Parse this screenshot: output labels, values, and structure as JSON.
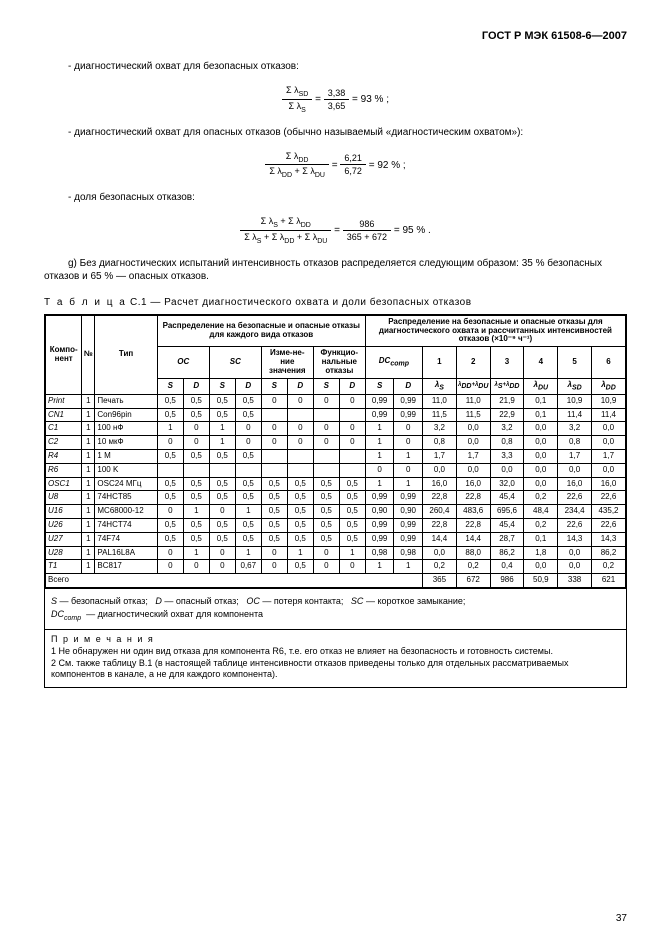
{
  "header": "ГОСТ Р МЭК 61508-6—2007",
  "para1": "- диагностический охват для безопасных отказов:",
  "f1": {
    "num1": "Σ λ_SD",
    "den1": "Σ λ_S",
    "num2": "3,38",
    "den2": "3,65",
    "rhs": "= 93 % ;"
  },
  "para2": "- диагностический охват для опасных отказов (обычно называемый «диагностическим охватом»):",
  "f2": {
    "num1": "Σ λ_DD",
    "den1": "Σ λ_DD + Σ λ_DU",
    "num2": "6,21",
    "den2": "6,72",
    "rhs": "= 92  % ;"
  },
  "para3": "- доля безопасных отказов:",
  "f3": {
    "num1": "Σ λ_S + Σ λ_DD",
    "den1": "Σ λ_S + Σ λ_DD  + Σ λ_DU",
    "num2": "986",
    "den2": "365 + 672",
    "rhs": "= 95 % ."
  },
  "para_g": "g) Без диагностических испытаний интенсивность отказов распределяется следующим образом: 35 % безопасных отказов и 65 % — опасных отказов.",
  "caption_prefix": "Т а б л и ц а",
  "caption_rest": "  С.1 — Расчет диагностического охвата и доли безопасных отказов",
  "h": {
    "comp": "Компо-\nнент",
    "n": "№",
    "type": "Тип",
    "left": "Распределение на безопасные и опасные отказы для каждого вида отказов",
    "right": "Распределение на безопасные и опасные отказы для диагностического охвата и рассчитанных интенсивностей отказов (×10⁻⁹ ч⁻¹)",
    "oc": "OC",
    "sc": "SC",
    "izm": "Изме-не-\nние\nзначения",
    "func": "Функцио-\nнальные\nотказы",
    "dc": "DC_comp",
    "S": "S",
    "D": "D",
    "c1": "1",
    "c2": "2",
    "c3": "3",
    "c4": "4",
    "c5": "5",
    "c6": "6",
    "l1": "λ_S",
    "l2": "λ_DD+λ_DU",
    "l3": "λ_S+λ_DD",
    "l4": "λ_DU",
    "l5": "λ_SD",
    "l6": "λ_DD"
  },
  "rows": [
    {
      "c": "Print",
      "n": "1",
      "t": "Печать",
      "v": [
        "0,5",
        "0,5",
        "0,5",
        "0,5",
        "0",
        "0",
        "0",
        "0",
        "0,99",
        "0,99",
        "11,0",
        "11,0",
        "21,9",
        "0,1",
        "10,9",
        "10,9"
      ]
    },
    {
      "c": "CN1",
      "n": "1",
      "t": "Con96pin",
      "v": [
        "0,5",
        "0,5",
        "0,5",
        "0,5",
        "",
        "",
        "",
        "",
        "0,99",
        "0,99",
        "11,5",
        "11,5",
        "22,9",
        "0,1",
        "11,4",
        "11,4"
      ]
    },
    {
      "c": "C1",
      "n": "1",
      "t": "100 нФ",
      "v": [
        "1",
        "0",
        "1",
        "0",
        "0",
        "0",
        "0",
        "0",
        "1",
        "0",
        "3,2",
        "0,0",
        "3,2",
        "0,0",
        "3,2",
        "0,0"
      ]
    },
    {
      "c": "C2",
      "n": "1",
      "t": "10 мкФ",
      "v": [
        "0",
        "0",
        "1",
        "0",
        "0",
        "0",
        "0",
        "0",
        "1",
        "0",
        "0,8",
        "0,0",
        "0,8",
        "0,0",
        "0,8",
        "0,0"
      ]
    },
    {
      "c": "R4",
      "n": "1",
      "t": "1 M",
      "v": [
        "0,5",
        "0,5",
        "0,5",
        "0,5",
        "",
        "",
        "",
        "",
        "1",
        "1",
        "1,7",
        "1,7",
        "3,3",
        "0,0",
        "1,7",
        "1,7"
      ]
    },
    {
      "c": "R6",
      "n": "1",
      "t": "100 K",
      "v": [
        "",
        "",
        "",
        "",
        "",
        "",
        "",
        "",
        "0",
        "0",
        "0,0",
        "0,0",
        "0,0",
        "0,0",
        "0,0",
        "0,0"
      ]
    },
    {
      "c": "OSC1",
      "n": "1",
      "t": "OSC24 МГц",
      "v": [
        "0,5",
        "0,5",
        "0,5",
        "0,5",
        "0,5",
        "0,5",
        "0,5",
        "0,5",
        "1",
        "1",
        "16,0",
        "16,0",
        "32,0",
        "0,0",
        "16,0",
        "16,0"
      ]
    },
    {
      "c": "U8",
      "n": "1",
      "t": "74HCT85",
      "v": [
        "0,5",
        "0,5",
        "0,5",
        "0,5",
        "0,5",
        "0,5",
        "0,5",
        "0,5",
        "0,99",
        "0,99",
        "22,8",
        "22,8",
        "45,4",
        "0,2",
        "22,6",
        "22,6"
      ]
    },
    {
      "c": "U16",
      "n": "1",
      "t": "MC68000-12",
      "v": [
        "0",
        "1",
        "0",
        "1",
        "0,5",
        "0,5",
        "0,5",
        "0,5",
        "0,90",
        "0,90",
        "260,4",
        "483,6",
        "695,6",
        "48,4",
        "234,4",
        "435,2"
      ]
    },
    {
      "c": "U26",
      "n": "1",
      "t": "74HCT74",
      "v": [
        "0,5",
        "0,5",
        "0,5",
        "0,5",
        "0,5",
        "0,5",
        "0,5",
        "0,5",
        "0,99",
        "0,99",
        "22,8",
        "22,8",
        "45,4",
        "0,2",
        "22,6",
        "22,6"
      ]
    },
    {
      "c": "U27",
      "n": "1",
      "t": "74F74",
      "v": [
        "0,5",
        "0,5",
        "0,5",
        "0,5",
        "0,5",
        "0,5",
        "0,5",
        "0,5",
        "0,99",
        "0,99",
        "14,4",
        "14,4",
        "28,7",
        "0,1",
        "14,3",
        "14,3"
      ]
    },
    {
      "c": "U28",
      "n": "1",
      "t": "PAL16L8A",
      "v": [
        "0",
        "1",
        "0",
        "1",
        "0",
        "1",
        "0",
        "1",
        "0,98",
        "0,98",
        "0,0",
        "88,0",
        "86,2",
        "1,8",
        "0,0",
        "86,2"
      ]
    },
    {
      "c": "T1",
      "n": "1",
      "t": "BC817",
      "v": [
        "0",
        "0",
        "0",
        "0,67",
        "0",
        "0,5",
        "0",
        "0",
        "1",
        "1",
        "0,2",
        "0,2",
        "0,4",
        "0,0",
        "0,0",
        "0,2"
      ]
    }
  ],
  "total_label": "Всего",
  "total": [
    "365",
    "672",
    "986",
    "50,9",
    "338",
    "621"
  ],
  "legend": {
    "s": "S — безопасный отказ;",
    "d": "D — опасный отказ;",
    "oc": "OC — потеря контакта;",
    "sc": "SC — короткое замыкание;",
    "dc": "DC_comp  — диагностический охват для компонента"
  },
  "notes": {
    "title": "П р и м е ч а н и я",
    "n1": "1 Не обнаружен ни один вид отказа для компонента R6, т.е. его отказ не влияет на безопасность и готовность системы.",
    "n2": "2 См. также таблицу В.1 (в настоящей таблице интенсивности отказов приведены только для отдельных рассматриваемых компонентов в канале, а не для каждого компонента)."
  },
  "page_num": "37"
}
